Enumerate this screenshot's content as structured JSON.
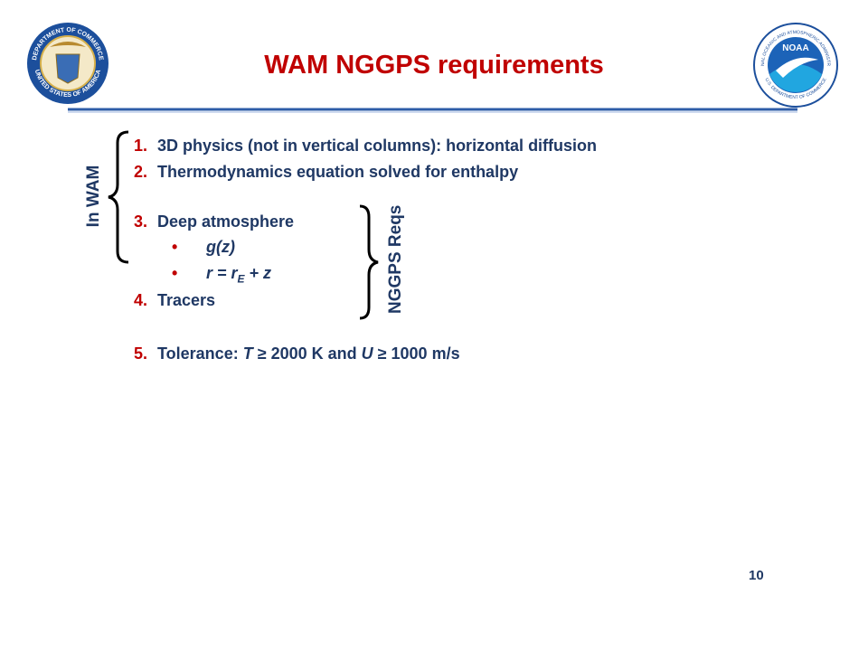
{
  "header": {
    "title": "WAM NGGPS requirements"
  },
  "logos": {
    "commerce": {
      "top": "DEPARTMENT OF COMMERCE",
      "bottom": "UNITED STATES OF AMERICA"
    },
    "noaa": {
      "center": "NOAA",
      "top": "NATIONAL OCEANIC AND ATMOSPHERIC ADMINISTRATION",
      "bottom": "U.S. DEPARTMENT OF COMMERCE"
    }
  },
  "list": [
    {
      "number": "1.",
      "text": [
        "3D physics (not in vertical columns): horizontal diffusion"
      ]
    },
    {
      "number": "2.",
      "text": [
        "Thermodynamics equation solved for enthalpy"
      ]
    },
    {
      "number": "3.",
      "text": [
        "Deep atmosphere"
      ],
      "bullets": [
        [
          "g(z)"
        ],
        [
          "r = r",
          "E",
          " + z"
        ]
      ]
    },
    {
      "number": "4.",
      "text": [
        "Tracers"
      ]
    },
    {
      "number": "5.",
      "text": [
        "Tolerance: ",
        "T",
        " ≥ 2000 K and ",
        "U",
        " ≥ 1000 m/s"
      ]
    }
  ],
  "brackets": {
    "in_wam": "In WAM",
    "nggps": "NGGPS Reqs"
  },
  "footer": {
    "page": "10"
  }
}
